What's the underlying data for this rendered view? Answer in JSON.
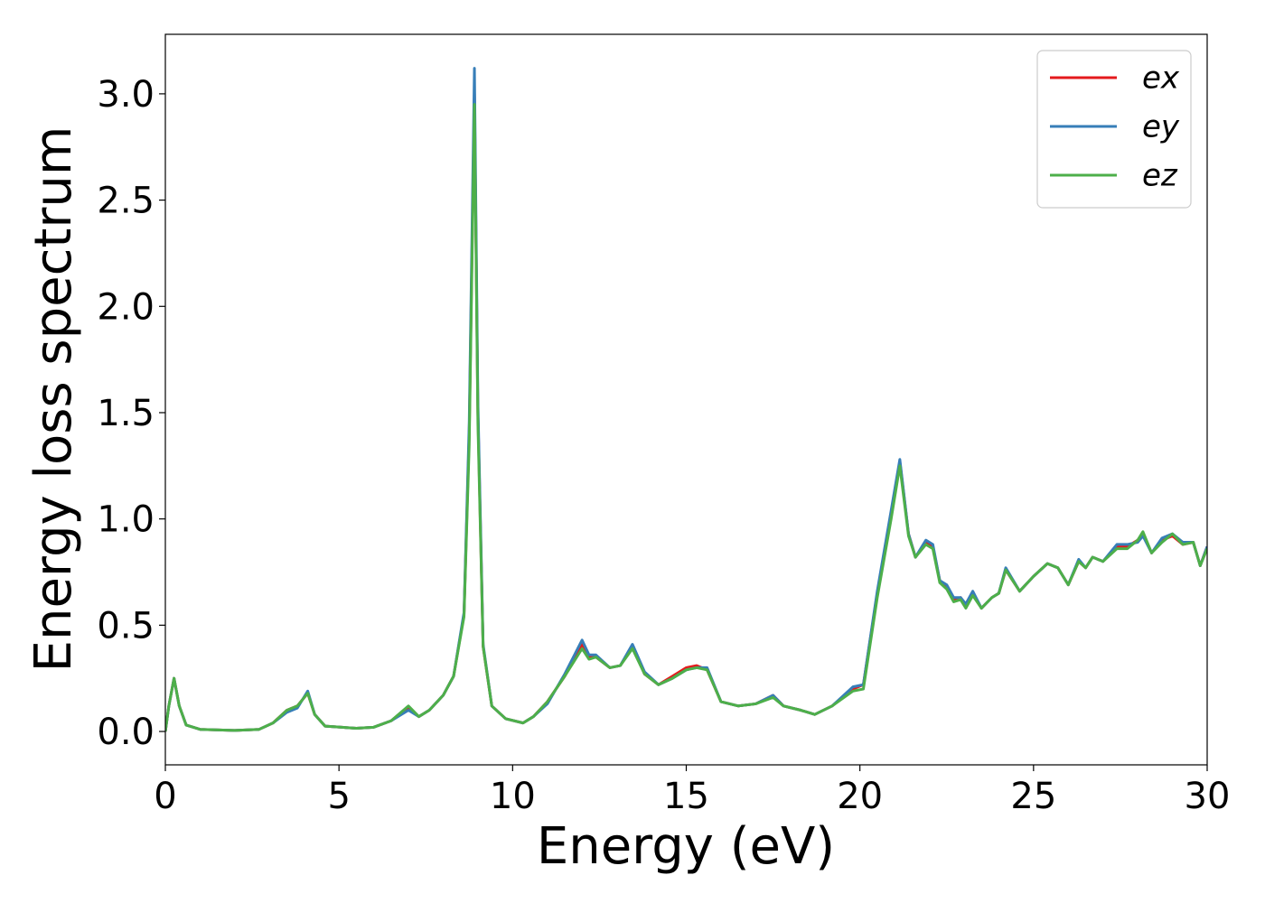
{
  "chart_data": {
    "type": "line",
    "xlabel": "Energy (eV)",
    "ylabel": "Energy loss spectrum",
    "x": [
      0,
      0.1,
      0.25,
      0.4,
      0.6,
      1.0,
      2.0,
      2.7,
      3.1,
      3.5,
      3.8,
      4.1,
      4.3,
      4.6,
      5.5,
      6.0,
      6.5,
      7.0,
      7.3,
      7.6,
      8.0,
      8.3,
      8.6,
      8.75,
      8.9,
      9.0,
      9.15,
      9.4,
      9.8,
      10.3,
      10.6,
      11.0,
      11.5,
      12.0,
      12.2,
      12.4,
      12.8,
      13.1,
      13.45,
      13.8,
      14.2,
      14.6,
      15.0,
      15.3,
      15.6,
      16.0,
      16.5,
      17.0,
      17.5,
      17.8,
      18.3,
      18.7,
      19.2,
      19.8,
      20.1,
      20.5,
      20.9,
      21.15,
      21.4,
      21.6,
      21.9,
      22.1,
      22.3,
      22.5,
      22.7,
      22.9,
      23.05,
      23.25,
      23.5,
      23.8,
      24.0,
      24.2,
      24.6,
      25.0,
      25.4,
      25.7,
      26.0,
      26.3,
      26.5,
      26.7,
      27.0,
      27.4,
      27.7,
      28.0,
      28.15,
      28.4,
      28.7,
      29.0,
      29.3,
      29.6,
      29.8,
      30.0
    ],
    "series": [
      {
        "name": "ex",
        "color": "#e41a1c",
        "values": [
          0,
          0.12,
          0.25,
          0.12,
          0.03,
          0.01,
          0.005,
          0.01,
          0.04,
          0.1,
          0.12,
          0.18,
          0.08,
          0.025,
          0.015,
          0.02,
          0.05,
          0.11,
          0.07,
          0.1,
          0.17,
          0.26,
          0.55,
          1.4,
          3.0,
          1.5,
          0.4,
          0.12,
          0.06,
          0.04,
          0.07,
          0.14,
          0.26,
          0.41,
          0.35,
          0.35,
          0.3,
          0.31,
          0.4,
          0.27,
          0.22,
          0.26,
          0.3,
          0.31,
          0.29,
          0.14,
          0.12,
          0.13,
          0.17,
          0.12,
          0.1,
          0.08,
          0.12,
          0.2,
          0.22,
          0.65,
          1.02,
          1.27,
          0.93,
          0.82,
          0.89,
          0.87,
          0.71,
          0.68,
          0.62,
          0.63,
          0.59,
          0.65,
          0.58,
          0.63,
          0.65,
          0.76,
          0.66,
          0.73,
          0.79,
          0.77,
          0.69,
          0.8,
          0.77,
          0.82,
          0.8,
          0.87,
          0.87,
          0.9,
          0.93,
          0.84,
          0.9,
          0.92,
          0.88,
          0.89,
          0.78,
          0.87
        ]
      },
      {
        "name": "ey",
        "color": "#377eb8",
        "values": [
          0,
          0.12,
          0.25,
          0.12,
          0.03,
          0.01,
          0.005,
          0.01,
          0.04,
          0.09,
          0.11,
          0.19,
          0.08,
          0.025,
          0.015,
          0.02,
          0.05,
          0.1,
          0.07,
          0.1,
          0.17,
          0.26,
          0.56,
          1.45,
          3.12,
          1.55,
          0.41,
          0.12,
          0.06,
          0.04,
          0.07,
          0.13,
          0.27,
          0.43,
          0.36,
          0.36,
          0.3,
          0.31,
          0.41,
          0.28,
          0.22,
          0.25,
          0.29,
          0.3,
          0.3,
          0.14,
          0.12,
          0.13,
          0.17,
          0.12,
          0.1,
          0.08,
          0.12,
          0.21,
          0.22,
          0.66,
          1.04,
          1.28,
          0.93,
          0.82,
          0.9,
          0.88,
          0.71,
          0.69,
          0.63,
          0.63,
          0.6,
          0.66,
          0.58,
          0.63,
          0.65,
          0.77,
          0.66,
          0.73,
          0.79,
          0.77,
          0.69,
          0.81,
          0.77,
          0.82,
          0.8,
          0.88,
          0.88,
          0.89,
          0.92,
          0.84,
          0.91,
          0.93,
          0.89,
          0.89,
          0.78,
          0.87
        ]
      },
      {
        "name": "ez",
        "color": "#4daf4a",
        "values": [
          0,
          0.12,
          0.25,
          0.12,
          0.03,
          0.01,
          0.005,
          0.01,
          0.04,
          0.1,
          0.12,
          0.18,
          0.08,
          0.025,
          0.015,
          0.02,
          0.05,
          0.12,
          0.07,
          0.1,
          0.17,
          0.26,
          0.54,
          1.35,
          2.95,
          1.45,
          0.4,
          0.12,
          0.06,
          0.04,
          0.07,
          0.14,
          0.26,
          0.39,
          0.34,
          0.35,
          0.3,
          0.31,
          0.39,
          0.27,
          0.22,
          0.25,
          0.29,
          0.3,
          0.29,
          0.14,
          0.12,
          0.13,
          0.16,
          0.12,
          0.1,
          0.08,
          0.12,
          0.19,
          0.2,
          0.63,
          1.0,
          1.25,
          0.92,
          0.82,
          0.88,
          0.86,
          0.7,
          0.67,
          0.61,
          0.62,
          0.58,
          0.64,
          0.58,
          0.63,
          0.65,
          0.76,
          0.66,
          0.73,
          0.79,
          0.77,
          0.69,
          0.8,
          0.77,
          0.82,
          0.8,
          0.86,
          0.86,
          0.9,
          0.94,
          0.84,
          0.89,
          0.93,
          0.88,
          0.89,
          0.78,
          0.86
        ]
      }
    ],
    "xlim": [
      0,
      30
    ],
    "xticks": [
      0,
      5,
      10,
      15,
      20,
      25,
      30
    ],
    "ylim": [
      -0.157,
      3.28
    ],
    "yticks": [
      {
        "value": 0,
        "label": "0.0"
      },
      0.5,
      {
        "value": 1,
        "label": "1.0"
      },
      1.5,
      {
        "value": 2,
        "label": "2.0"
      },
      2.5,
      {
        "value": 3,
        "label": "3.0"
      }
    ],
    "grid": false,
    "legend": "upper right"
  }
}
